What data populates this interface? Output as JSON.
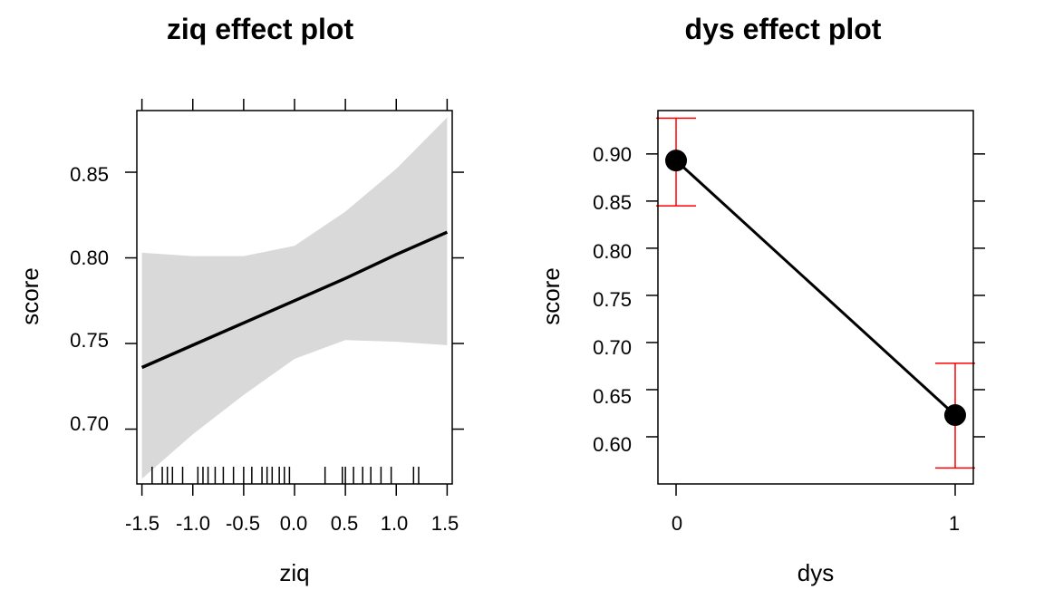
{
  "chart_data": [
    {
      "type": "line",
      "title": "ziq effect plot",
      "xlabel": "ziq",
      "ylabel": "score",
      "xlim": [
        -1.55,
        1.55
      ],
      "ylim": [
        0.668,
        0.886
      ],
      "xticks": [
        -1.5,
        -1.0,
        -0.5,
        0.0,
        0.5,
        1.0,
        1.5
      ],
      "xtick_labels": [
        "-1.5",
        "-1.0",
        "-0.5",
        "0.0",
        "0.5",
        "1.0",
        "1.5"
      ],
      "yticks": [
        0.7,
        0.75,
        0.8,
        0.85
      ],
      "ytick_labels": [
        "0.70",
        "0.75",
        "0.80",
        "0.85"
      ],
      "grid": false,
      "series": [
        {
          "x": [
            -1.5,
            -1.0,
            -0.5,
            0.0,
            0.5,
            1.0,
            1.5
          ],
          "fit": [
            0.736,
            0.749,
            0.762,
            0.775,
            0.788,
            0.802,
            0.815
          ],
          "lower": [
            0.671,
            0.697,
            0.72,
            0.741,
            0.752,
            0.751,
            0.749
          ],
          "upper": [
            0.803,
            0.801,
            0.801,
            0.807,
            0.827,
            0.852,
            0.882
          ]
        }
      ],
      "rug": [
        -1.4,
        -1.3,
        -1.25,
        -1.2,
        -1.1,
        -0.95,
        -0.9,
        -0.85,
        -0.78,
        -0.7,
        -0.6,
        -0.5,
        -0.42,
        -0.32,
        -0.27,
        -0.22,
        -0.15,
        -0.1,
        -0.05,
        0.3,
        0.47,
        0.5,
        0.58,
        0.67,
        0.75,
        0.85,
        0.95,
        1.17,
        1.22
      ],
      "colors": {
        "line": "#000000",
        "band": "#d9d9d9"
      }
    },
    {
      "type": "scatter",
      "title": "dys effect plot",
      "xlabel": "dys",
      "ylabel": "score",
      "xlim": [
        -0.065,
        1.065
      ],
      "ylim": [
        0.55,
        0.946
      ],
      "categories": [
        "0",
        "1"
      ],
      "xticks": [
        0,
        1
      ],
      "yticks": [
        0.6,
        0.65,
        0.7,
        0.75,
        0.8,
        0.85,
        0.9
      ],
      "ytick_labels": [
        "0.60",
        "0.65",
        "0.70",
        "0.75",
        "0.80",
        "0.85",
        "0.90"
      ],
      "grid": false,
      "series": [
        {
          "x": [
            0,
            1
          ],
          "values": [
            0.893,
            0.623
          ],
          "lower": [
            0.845,
            0.567
          ],
          "upper": [
            0.938,
            0.678
          ]
        }
      ],
      "colors": {
        "line": "#000000",
        "point": "#000000",
        "errorbar": "#ff0000"
      }
    }
  ]
}
